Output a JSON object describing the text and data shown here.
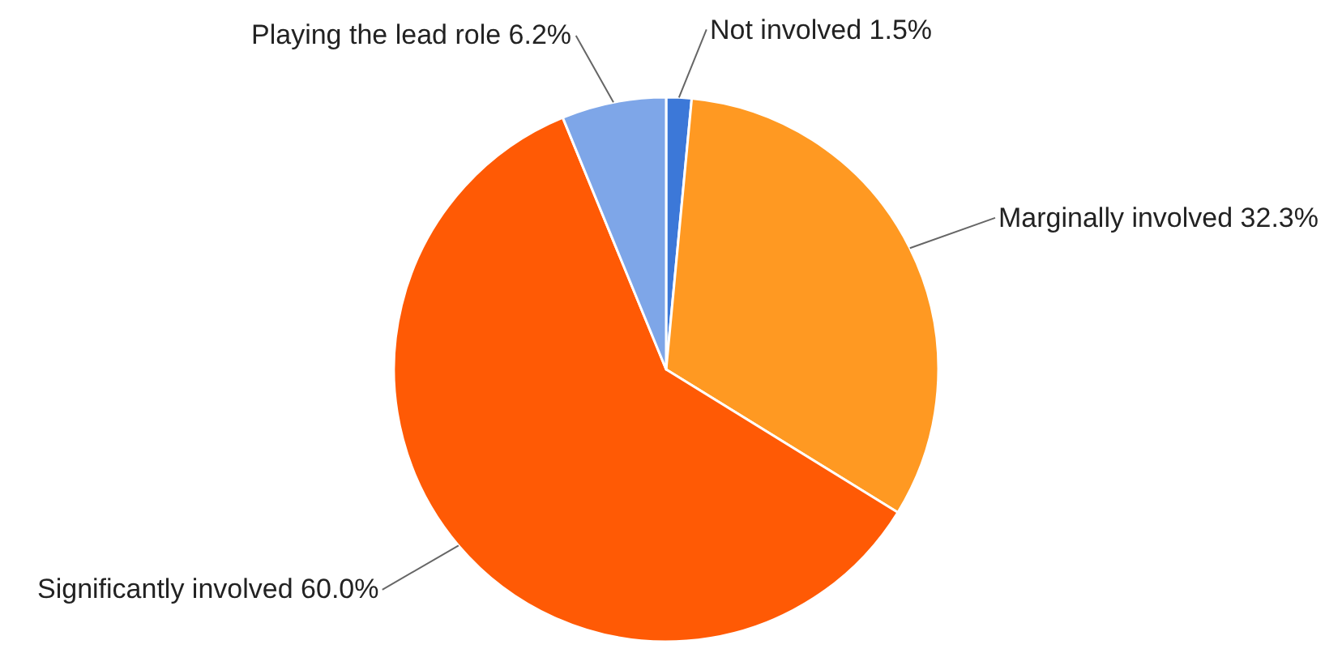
{
  "chart_data": {
    "type": "pie",
    "categories": [
      "Not involved",
      "Marginally involved",
      "Significantly involved",
      "Playing the lead role"
    ],
    "values": [
      1.5,
      32.3,
      60.0,
      6.2
    ],
    "value_labels": [
      "1.5%",
      "32.3%",
      "60.0%",
      "6.2%"
    ],
    "colors": [
      "#3c78d8",
      "#ff9922",
      "#ff5a05",
      "#7ea6e8"
    ],
    "legend": false
  }
}
